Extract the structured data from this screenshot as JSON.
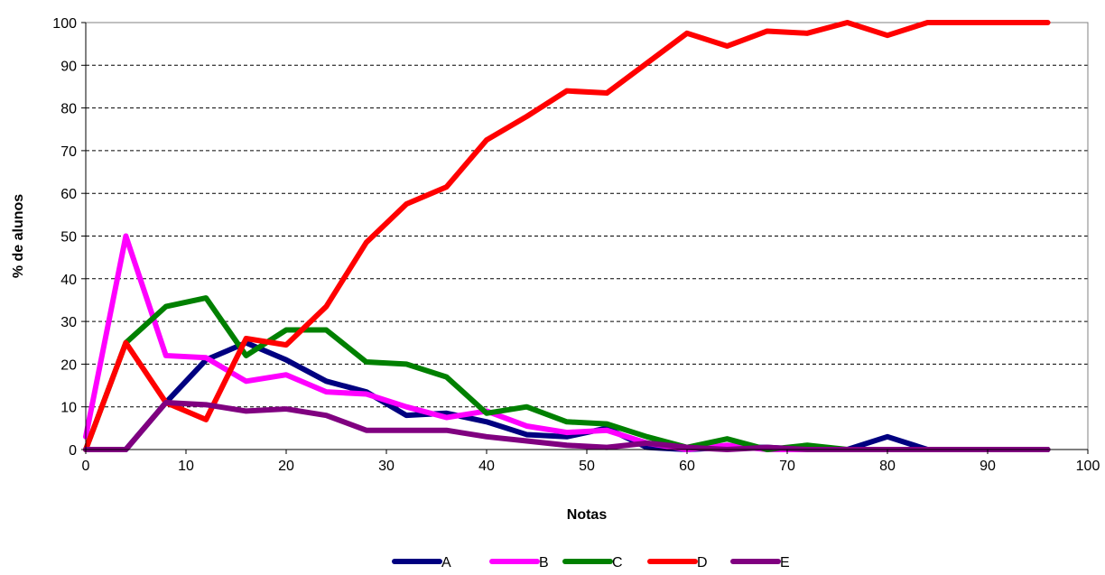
{
  "chart_data": {
    "type": "line",
    "title": "",
    "xlabel": "Notas",
    "ylabel": "% de alunos",
    "xlim": [
      0,
      100
    ],
    "ylim": [
      0,
      100
    ],
    "x_ticks": [
      0,
      10,
      20,
      30,
      40,
      50,
      60,
      70,
      80,
      90,
      100
    ],
    "y_ticks": [
      0,
      10,
      20,
      30,
      40,
      50,
      60,
      70,
      80,
      90,
      100
    ],
    "grid": "horizontal dashed",
    "legend_position": "bottom",
    "x": [
      0,
      4,
      8,
      12,
      16,
      20,
      24,
      28,
      32,
      36,
      40,
      44,
      48,
      52,
      56,
      60,
      64,
      68,
      72,
      76,
      80,
      84,
      88,
      92,
      96
    ],
    "series": [
      {
        "name": "A",
        "color": "#000080",
        "values": [
          0,
          0,
          11,
          21,
          25,
          21,
          16,
          13.5,
          8,
          8.5,
          6.5,
          3.5,
          3,
          5,
          0.5,
          0,
          0.5,
          0.5,
          0,
          0,
          3,
          0,
          0,
          0,
          0
        ]
      },
      {
        "name": "B",
        "color": "#ff00ff",
        "values": [
          3,
          50,
          22,
          21.5,
          16,
          17.5,
          13.5,
          13,
          10,
          7.5,
          9,
          5.5,
          4,
          4.5,
          1.5,
          0,
          1,
          0,
          0,
          0,
          0,
          0,
          0,
          0,
          0
        ]
      },
      {
        "name": "C",
        "color": "#008000",
        "values": [
          0,
          25,
          33.5,
          35.5,
          22,
          28,
          28,
          20.5,
          20,
          17,
          8.5,
          10,
          6.5,
          6,
          3,
          0.5,
          2.5,
          0,
          1,
          0,
          0,
          0,
          0,
          0,
          0
        ]
      },
      {
        "name": "D",
        "color": "#ff0000",
        "values": [
          0,
          25,
          11,
          7,
          26,
          24.5,
          33.5,
          48.5,
          57.5,
          61.5,
          72.5,
          78,
          84,
          83.5,
          90.5,
          97.5,
          94.5,
          98,
          97.5,
          100,
          97,
          100,
          100,
          100,
          100
        ]
      },
      {
        "name": "E",
        "color": "#800080",
        "values": [
          0,
          0,
          11,
          10.5,
          9,
          9.5,
          8,
          4.5,
          4.5,
          4.5,
          3,
          2,
          1,
          0.5,
          1.5,
          0.5,
          0,
          0.5,
          0,
          0,
          0,
          0,
          0,
          0,
          0
        ]
      }
    ]
  }
}
